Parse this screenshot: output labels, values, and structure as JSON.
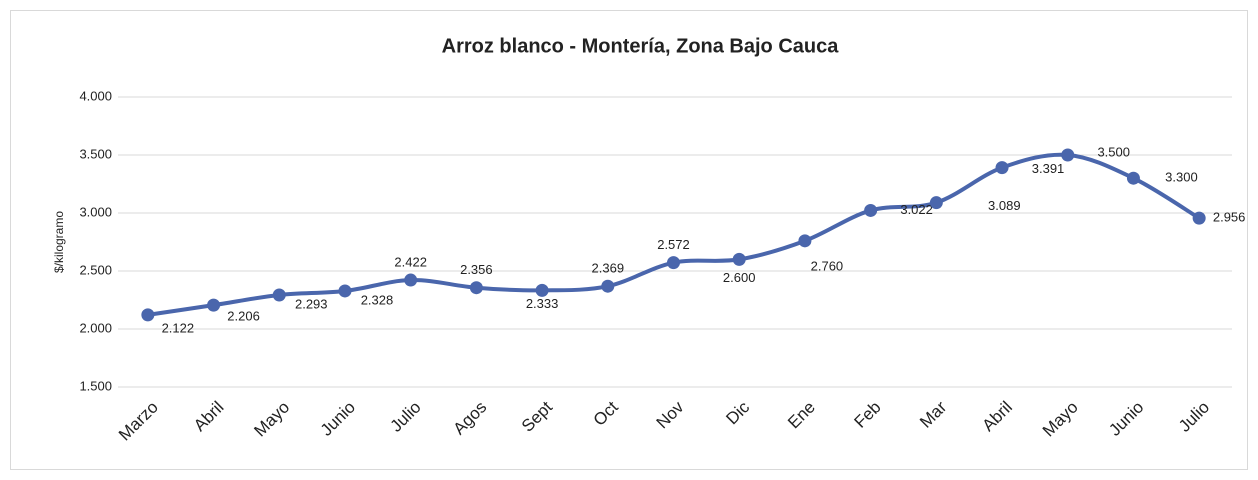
{
  "chart_data": {
    "type": "line",
    "title": "Arroz blanco - Montería, Zona Bajo Cauca",
    "y_label": "$/kilogramo",
    "categories": [
      "Marzo",
      "Abril",
      "Mayo",
      "Junio",
      "Julio",
      "Agos",
      "Sept",
      "Oct",
      "Nov",
      "Dic",
      "Ene",
      "Feb",
      "Mar",
      "Abril",
      "Mayo",
      "Junio",
      "Julio"
    ],
    "series": [
      {
        "name": "Arroz blanco",
        "color": "#4a66ac",
        "values": [
          2122,
          2206,
          2293,
          2328,
          2422,
          2356,
          2333,
          2369,
          2572,
          2600,
          2760,
          3022,
          3089,
          3391,
          3500,
          3300,
          2956
        ],
        "value_labels": [
          "2.122",
          "2.206",
          "2.293",
          "2.328",
          "2.422",
          "2.356",
          "2.333",
          "2.369",
          "2.572",
          "2.600",
          "2.760",
          "3.022",
          "3.089",
          "3.391",
          "3.500",
          "3.300",
          "2.956"
        ]
      }
    ],
    "ylim": [
      1500,
      4000
    ],
    "yticks": [
      {
        "value": 1500,
        "label": "1.500"
      },
      {
        "value": 2000,
        "label": "2.000"
      },
      {
        "value": 2500,
        "label": "2.500"
      },
      {
        "value": 3000,
        "label": "3.000"
      },
      {
        "value": 3500,
        "label": "3.500"
      },
      {
        "value": 4000,
        "label": "4.000"
      }
    ],
    "grid": true,
    "smooth": true
  }
}
